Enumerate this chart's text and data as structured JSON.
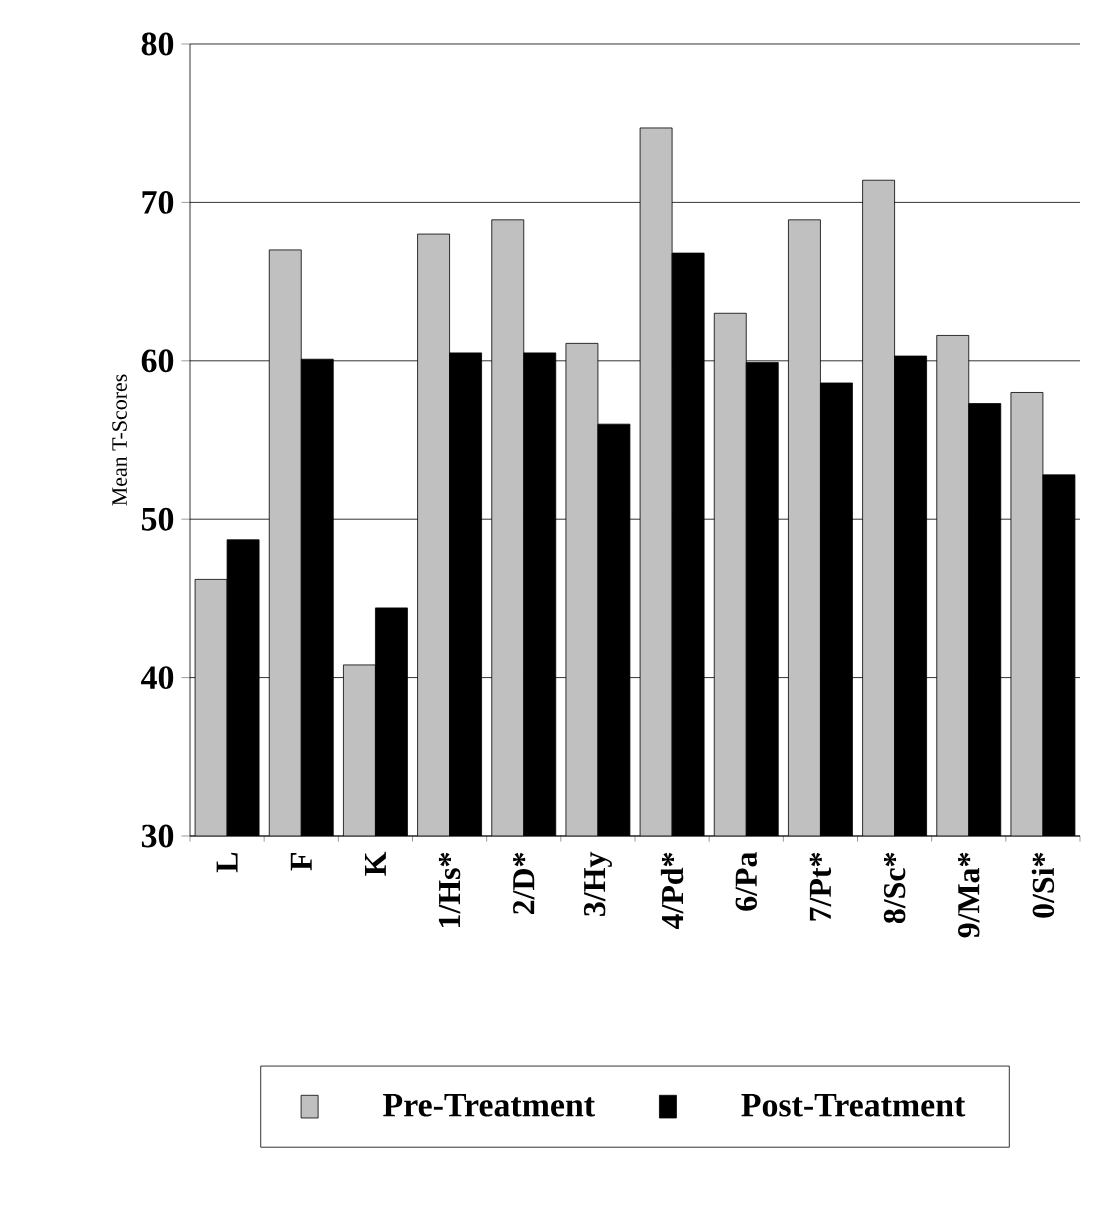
{
  "chart_data": {
    "type": "bar",
    "ylabel": "Mean T-Scores",
    "categories": [
      "L",
      "F",
      "K",
      "1/Hs*",
      "2/D*",
      "3/Hy",
      "4/Pd*",
      "6/Pa",
      "7/Pt*",
      "8/Sc*",
      "9/Ma*",
      "0/Si*"
    ],
    "series": [
      {
        "name": "Pre-Treatment",
        "color": "#c0c0c0",
        "values": [
          46.2,
          67.0,
          40.8,
          68.0,
          68.9,
          61.1,
          74.7,
          63.0,
          68.9,
          71.4,
          61.6,
          58.0
        ]
      },
      {
        "name": "Post-Treatment",
        "color": "#000000",
        "values": [
          48.7,
          60.1,
          44.4,
          60.5,
          60.5,
          56.0,
          66.8,
          59.9,
          58.6,
          60.3,
          57.3,
          52.8
        ]
      }
    ],
    "ylim": [
      30,
      80
    ],
    "yticks": [
      30,
      40,
      50,
      60,
      70,
      80
    ],
    "grid": "y",
    "legend": "bottom"
  }
}
